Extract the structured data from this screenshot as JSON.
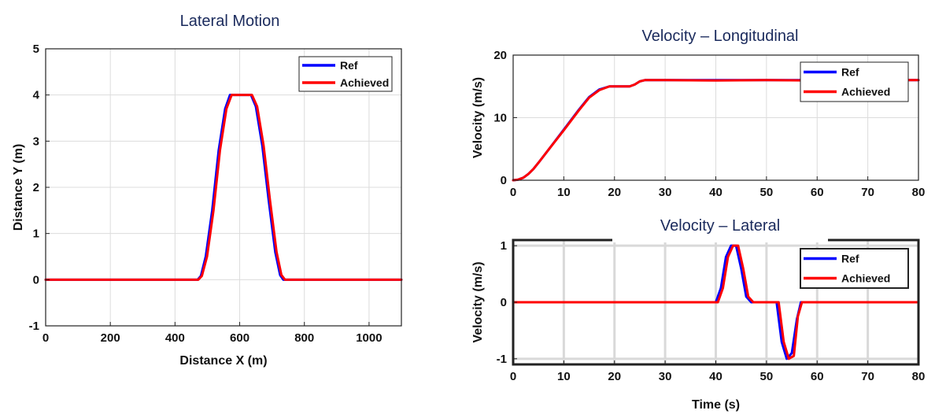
{
  "chart_data": [
    {
      "id": "lateral_motion",
      "type": "line",
      "title": "Lateral Motion",
      "xlabel": "Distance X (m)",
      "ylabel": "Distance Y (m)",
      "xlim": [
        0,
        1100
      ],
      "ylim": [
        -1,
        5
      ],
      "xticks": [
        0,
        200,
        400,
        600,
        800,
        1000
      ],
      "yticks": [
        -1,
        0,
        1,
        2,
        3,
        4,
        5
      ],
      "grid": true,
      "legend_position": "top-right",
      "series": [
        {
          "name": "Ref",
          "color": "#0000ff",
          "x": [
            0,
            470,
            480,
            495,
            515,
            535,
            555,
            570,
            600,
            635,
            650,
            670,
            690,
            710,
            725,
            735,
            1100
          ],
          "y": [
            0,
            0,
            0.08,
            0.5,
            1.5,
            2.8,
            3.7,
            4.0,
            4.0,
            4.0,
            3.75,
            2.9,
            1.7,
            0.6,
            0.1,
            0,
            0
          ]
        },
        {
          "name": "Achieved",
          "color": "#ff0000",
          "x": [
            0,
            472,
            483,
            499,
            519,
            539,
            559,
            575,
            605,
            638,
            654,
            674,
            694,
            714,
            729,
            740,
            1100
          ],
          "y": [
            0,
            0,
            0.08,
            0.5,
            1.5,
            2.8,
            3.7,
            4.0,
            4.0,
            4.0,
            3.75,
            2.9,
            1.7,
            0.6,
            0.1,
            0,
            0
          ]
        }
      ]
    },
    {
      "id": "velocity_longitudinal",
      "type": "line",
      "title": "Velocity – Longitudinal",
      "xlabel": "",
      "ylabel": "Velocity (m/s)",
      "xlim": [
        0,
        80
      ],
      "ylim": [
        0,
        20
      ],
      "xticks": [
        0,
        10,
        20,
        30,
        40,
        50,
        60,
        70,
        80
      ],
      "yticks": [
        0,
        10,
        20
      ],
      "grid": true,
      "legend_position": "top-right",
      "series": [
        {
          "name": "Ref",
          "color": "#0000ff",
          "x": [
            0,
            1,
            2,
            3,
            4,
            5,
            7,
            10,
            13,
            15,
            17,
            19,
            20,
            21,
            23,
            24,
            25,
            26,
            30,
            40,
            50,
            60,
            70,
            80
          ],
          "y": [
            0,
            0.1,
            0.4,
            1.0,
            1.8,
            2.8,
            4.9,
            8.1,
            11.3,
            13.3,
            14.5,
            15.0,
            15.0,
            15.0,
            15.0,
            15.3,
            15.8,
            16.0,
            16.0,
            16.0,
            16.0,
            16.0,
            16.0,
            16.0
          ]
        },
        {
          "name": "Achieved",
          "color": "#ff0000",
          "x": [
            0,
            1,
            2,
            3,
            4,
            5,
            7,
            10,
            13,
            15,
            17,
            19,
            20,
            21,
            23,
            24,
            25,
            26,
            30,
            40,
            50,
            60,
            70,
            80
          ],
          "y": [
            0,
            0.1,
            0.4,
            1.0,
            1.8,
            2.8,
            4.9,
            8.0,
            11.2,
            13.2,
            14.4,
            15.0,
            15.0,
            15.0,
            15.0,
            15.3,
            15.8,
            16.0,
            16.0,
            15.95,
            16.0,
            15.95,
            16.0,
            16.0
          ]
        }
      ]
    },
    {
      "id": "velocity_lateral",
      "type": "line",
      "title": "Velocity – Lateral",
      "xlabel": "Time (s)",
      "ylabel": "Velocity (m/s)",
      "xlim": [
        0,
        80
      ],
      "ylim": [
        -1.1,
        1.1
      ],
      "xticks": [
        0,
        10,
        20,
        30,
        40,
        50,
        60,
        70,
        80
      ],
      "yticks": [
        -1,
        0,
        1
      ],
      "grid": true,
      "legend_position": "top-right",
      "series": [
        {
          "name": "Ref",
          "color": "#0000ff",
          "x": [
            0,
            40,
            41,
            42,
            43,
            44,
            45,
            46,
            47,
            52,
            53,
            54,
            55,
            56,
            56.8,
            80
          ],
          "y": [
            0,
            0,
            0.25,
            0.8,
            1.0,
            1.0,
            0.6,
            0.1,
            0,
            0,
            -0.7,
            -1.0,
            -0.9,
            -0.3,
            0,
            0
          ]
        },
        {
          "name": "Achieved",
          "color": "#ff0000",
          "x": [
            0,
            40.4,
            41.4,
            42.4,
            43.4,
            44.4,
            45.4,
            46.4,
            47.4,
            52.4,
            53.4,
            54.4,
            55.4,
            56.2,
            57.0,
            80
          ],
          "y": [
            0,
            0,
            0.25,
            0.8,
            1.0,
            1.0,
            0.6,
            0.1,
            0,
            0,
            -0.7,
            -1.0,
            -0.95,
            -0.25,
            0,
            0
          ]
        }
      ]
    }
  ]
}
